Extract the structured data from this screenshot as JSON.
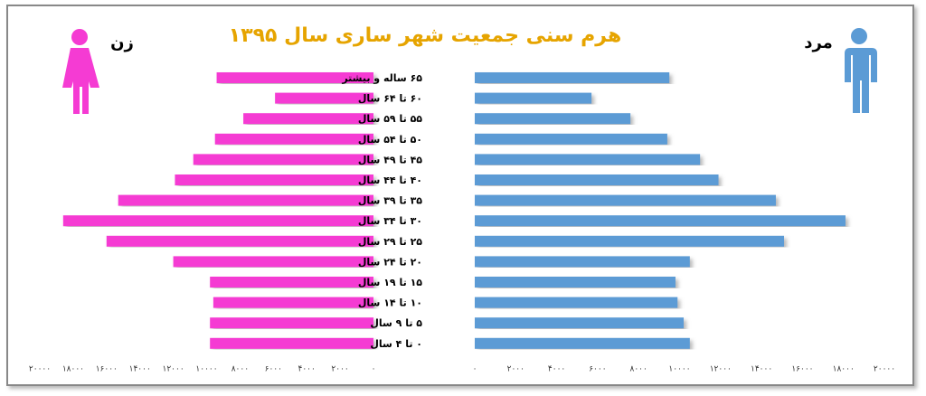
{
  "chart_data": {
    "type": "pyramid",
    "title": "هرم سنی جمعیت شهر ساری سال ۱۳۹۵",
    "categories": [
      "۶۵ ساله و بیشتر",
      "۶۰ تا ۶۴ سال",
      "۵۵ تا ۵۹ سال",
      "۵۰ تا ۵۴ سال",
      "۴۵ تا ۴۹ سال",
      "۴۰ تا ۴۴ سال",
      "۳۵ تا ۳۹ سال",
      "۳۰ تا ۳۴ سال",
      "۲۵ تا ۲۹ سال",
      "۲۰ تا ۲۴ سال",
      "۱۵ تا ۱۹ سال",
      "۱۰ تا ۱۴ سال",
      "۵ تا ۹ سال",
      "۰ تا ۴ سال"
    ],
    "series": [
      {
        "name": "زن",
        "color": "#f53bd3",
        "side": "left",
        "values": [
          9400,
          5900,
          7800,
          9500,
          10800,
          11900,
          15300,
          18600,
          16000,
          12000,
          9800,
          9600,
          9800,
          9800
        ],
        "xlim": [
          0,
          20000
        ],
        "xticks": [
          {
            "value": 0,
            "label": "۰"
          },
          {
            "value": 2000,
            "label": "۲۰۰۰"
          },
          {
            "value": 4000,
            "label": "۴۰۰۰"
          },
          {
            "value": 6000,
            "label": "۶۰۰۰"
          },
          {
            "value": 8000,
            "label": "۸۰۰۰"
          },
          {
            "value": 10000,
            "label": "۱۰۰۰۰"
          },
          {
            "value": 12000,
            "label": "۱۲۰۰۰"
          },
          {
            "value": 14000,
            "label": "۱۴۰۰۰"
          },
          {
            "value": 16000,
            "label": "۱۶۰۰۰"
          },
          {
            "value": 18000,
            "label": "۱۸۰۰۰"
          },
          {
            "value": 20000,
            "label": "۲۰۰۰۰"
          }
        ]
      },
      {
        "name": "مرد",
        "color": "#5b9bd5",
        "side": "right",
        "values": [
          9500,
          5700,
          7600,
          9400,
          11000,
          11900,
          14700,
          18100,
          15100,
          10500,
          9800,
          9900,
          10200,
          10500
        ],
        "xlim": [
          0,
          20000
        ],
        "xticks": [
          {
            "value": 0,
            "label": "۰"
          },
          {
            "value": 2000,
            "label": "۲۰۰۰"
          },
          {
            "value": 4000,
            "label": "۴۰۰۰"
          },
          {
            "value": 6000,
            "label": "۶۰۰۰"
          },
          {
            "value": 8000,
            "label": "۸۰۰۰"
          },
          {
            "value": 10000,
            "label": "۱۰۰۰۰"
          },
          {
            "value": 12000,
            "label": "۱۲۰۰۰"
          },
          {
            "value": 14000,
            "label": "۱۴۰۰۰"
          },
          {
            "value": 16000,
            "label": "۱۶۰۰۰"
          },
          {
            "value": 18000,
            "label": "۱۸۰۰۰"
          },
          {
            "value": 20000,
            "label": "۲۰۰۰۰"
          }
        ]
      }
    ]
  }
}
